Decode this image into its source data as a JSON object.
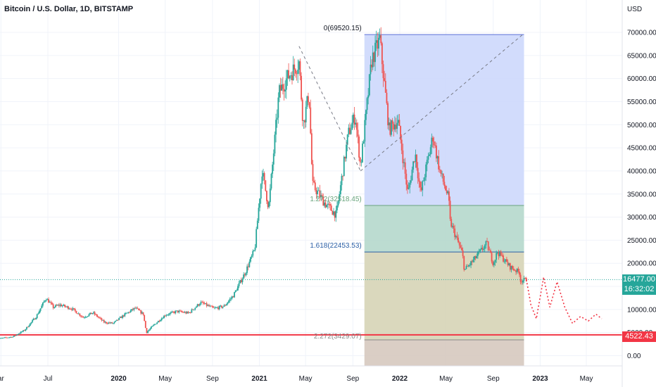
{
  "header": {
    "symbol": "Bitcoin / U.S. Dollar, 1D, BITSTAMP"
  },
  "price_axis": {
    "unit_label": "USD"
  },
  "last_price": {
    "value": "16477.00",
    "countdown": "16:32:02",
    "color": "#26a69a"
  },
  "support_level": {
    "value": "4522.43",
    "color": "#f23645"
  },
  "fib_labels": {
    "top": "0(69520.15)",
    "level_1272": "1.272(32518.45)",
    "level_1618": "1.618(22453.53)",
    "level_2272": "2.272(3429.07)"
  },
  "colors": {
    "up": "#26a69a",
    "down": "#ef5350",
    "fib_blue": "#cdd8fc",
    "fib_green": "#b5d8cc",
    "fib_olive": "#d6d4b6",
    "fib_brown": "#d6c9bf"
  },
  "chart_data": {
    "type": "candlestick",
    "title": "Bitcoin / U.S. Dollar, 1D, BITSTAMP",
    "y_ticks": [
      0,
      5000,
      10000,
      15000,
      20000,
      25000,
      30000,
      35000,
      40000,
      45000,
      50000,
      55000,
      60000,
      65000,
      70000
    ],
    "y_tick_labels": [
      "0.00",
      "5000.00",
      "10000.00",
      "15000.00",
      "20000.00",
      "25000.00",
      "30000.00",
      "35000.00",
      "40000.00",
      "45000.00",
      "50000.00",
      "55000.00",
      "60000.00",
      "65000.00",
      "70000.00"
    ],
    "ylim": [
      -5000,
      71500
    ],
    "x_tick_labels": [
      {
        "label": "ar",
        "t": "2019-03-01"
      },
      {
        "label": "Jul",
        "t": "2019-07-01"
      },
      {
        "label": "2020",
        "t": "2020-01-01"
      },
      {
        "label": "May",
        "t": "2020-05-01"
      },
      {
        "label": "Sep",
        "t": "2020-09-01"
      },
      {
        "label": "2021",
        "t": "2021-01-01"
      },
      {
        "label": "May",
        "t": "2021-05-01"
      },
      {
        "label": "Sep",
        "t": "2021-09-01"
      },
      {
        "label": "2022",
        "t": "2022-01-01"
      },
      {
        "label": "May",
        "t": "2022-05-01"
      },
      {
        "label": "Sep",
        "t": "2022-09-01"
      },
      {
        "label": "2023",
        "t": "2023-01-01"
      },
      {
        "label": "May",
        "t": "2023-05-01"
      }
    ],
    "price_path": [
      [
        "2019-02-15",
        3600
      ],
      [
        "2019-04-01",
        4100
      ],
      [
        "2019-05-01",
        5500
      ],
      [
        "2019-06-01",
        8500
      ],
      [
        "2019-06-26",
        12500
      ],
      [
        "2019-07-15",
        10500
      ],
      [
        "2019-08-01",
        11000
      ],
      [
        "2019-09-01",
        10200
      ],
      [
        "2019-10-01",
        8300
      ],
      [
        "2019-10-26",
        9300
      ],
      [
        "2019-11-25",
        7200
      ],
      [
        "2019-12-18",
        7000
      ],
      [
        "2020-01-15",
        8800
      ],
      [
        "2020-02-13",
        10300
      ],
      [
        "2020-03-05",
        9000
      ],
      [
        "2020-03-13",
        5000
      ],
      [
        "2020-04-01",
        6600
      ],
      [
        "2020-05-01",
        8800
      ],
      [
        "2020-06-01",
        9600
      ],
      [
        "2020-07-01",
        9200
      ],
      [
        "2020-08-01",
        11500
      ],
      [
        "2020-09-05",
        10200
      ],
      [
        "2020-10-01",
        10700
      ],
      [
        "2020-10-25",
        13000
      ],
      [
        "2020-11-25",
        18000
      ],
      [
        "2020-12-20",
        23000
      ],
      [
        "2021-01-08",
        40000
      ],
      [
        "2021-01-25",
        32000
      ],
      [
        "2021-02-21",
        57000
      ],
      [
        "2021-03-13",
        60000
      ],
      [
        "2021-04-14",
        63500
      ],
      [
        "2021-04-25",
        50000
      ],
      [
        "2021-05-10",
        57000
      ],
      [
        "2021-05-19",
        37000
      ],
      [
        "2021-06-20",
        33000
      ],
      [
        "2021-07-20",
        30500
      ],
      [
        "2021-08-20",
        48000
      ],
      [
        "2021-09-07",
        52000
      ],
      [
        "2021-09-21",
        41000
      ],
      [
        "2021-10-20",
        64000
      ],
      [
        "2021-11-10",
        68500
      ],
      [
        "2021-12-04",
        49000
      ],
      [
        "2021-12-27",
        51000
      ],
      [
        "2022-01-22",
        35000
      ],
      [
        "2022-02-10",
        44000
      ],
      [
        "2022-02-24",
        35000
      ],
      [
        "2022-03-28",
        47500
      ],
      [
        "2022-04-15",
        40000
      ],
      [
        "2022-05-08",
        34000
      ],
      [
        "2022-05-12",
        29000
      ],
      [
        "2022-06-13",
        22000
      ],
      [
        "2022-06-18",
        18500
      ],
      [
        "2022-07-10",
        20500
      ],
      [
        "2022-08-15",
        24300
      ],
      [
        "2022-09-01",
        20000
      ],
      [
        "2022-09-12",
        22500
      ],
      [
        "2022-10-15",
        19200
      ],
      [
        "2022-11-08",
        18000
      ],
      [
        "2022-11-10",
        16200
      ],
      [
        "2022-11-26",
        16477
      ]
    ],
    "projection_path": [
      [
        "2022-11-26",
        16477
      ],
      [
        "2022-12-08",
        11000
      ],
      [
        "2022-12-22",
        8000
      ],
      [
        "2023-01-10",
        17000
      ],
      [
        "2023-01-26",
        10500
      ],
      [
        "2023-02-14",
        16000
      ],
      [
        "2023-03-06",
        10500
      ],
      [
        "2023-03-26",
        7000
      ],
      [
        "2023-04-16",
        8500
      ],
      [
        "2023-05-06",
        7500
      ],
      [
        "2023-05-26",
        9000
      ],
      [
        "2023-06-10",
        8000
      ]
    ],
    "fib_extension": {
      "anchors": [
        [
          "2021-04-14",
          67000
        ],
        [
          "2021-09-21",
          40000
        ],
        [
          "2022-03-28",
          69520.15
        ]
      ],
      "levels": [
        {
          "ratio": "0",
          "price": 69520.15
        },
        {
          "ratio": "1.272",
          "price": 32518.45
        },
        {
          "ratio": "1.618",
          "price": 22453.53
        },
        {
          "ratio": "2.272",
          "price": 3429.07
        }
      ],
      "box_start": "2021-10-01",
      "box_end": "2022-11-20"
    },
    "horizontal_levels": [
      {
        "price": 4522.43,
        "style": "solid"
      },
      {
        "price": 16477.0,
        "style": "dotted"
      }
    ]
  }
}
